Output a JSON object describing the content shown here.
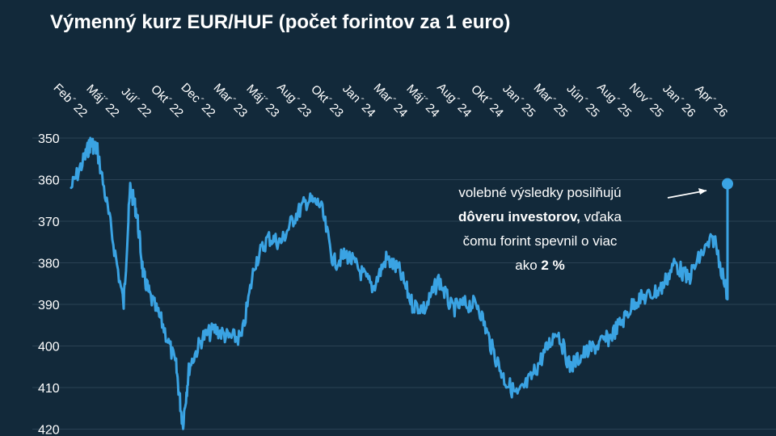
{
  "chart_data": {
    "type": "line",
    "title": "Výmenný kurz EUR/HUF (počet forintov za 1 euro)",
    "xlabel": "",
    "ylabel": "",
    "y_inverted": true,
    "ylim": [
      350,
      420
    ],
    "y_ticks": [
      "350",
      "360",
      "370",
      "380",
      "390",
      "400",
      "410",
      "420"
    ],
    "x_ticks": [
      "Feb´ 22",
      "Máj´ 22",
      "Júl´ 22",
      "Okt´ 22",
      "Dec´ 22",
      "Mar´ 23",
      "Máj´ 23",
      "Aug´ 23",
      "Okt´ 23",
      "Jan´ 24",
      "Mar´ 24",
      "Máj´ 24",
      "Aug´ 24",
      "Okt´ 24",
      "Jan´ 25",
      "Mar´ 25",
      "Jún´ 25",
      "Aug´ 25",
      "Nov´ 25",
      "Jan´ 26",
      "Apr´ 26"
    ],
    "grid": true,
    "line_color": "#3aa3e3",
    "series": [
      {
        "x": [
          "2022-02",
          "2022-03",
          "2022-03",
          "2022-04",
          "2022-05",
          "2022-06",
          "2022-06",
          "2022-07",
          "2022-07",
          "2022-08",
          "2022-09",
          "2022-10",
          "2022-10",
          "2022-11",
          "2022-12",
          "2023-01",
          "2023-02",
          "2023-03",
          "2023-04",
          "2023-05",
          "2023-06",
          "2023-07",
          "2023-08",
          "2023-09",
          "2023-10",
          "2023-11",
          "2023-12",
          "2024-01",
          "2024-02",
          "2024-03",
          "2024-04",
          "2024-05",
          "2024-06",
          "2024-07",
          "2024-08",
          "2024-09",
          "2024-10",
          "2024-11",
          "2024-12",
          "2025-01",
          "2025-02",
          "2025-03",
          "2025-04",
          "2025-05",
          "2025-06",
          "2025-07",
          "2025-08",
          "2025-09",
          "2025-10",
          "2025-11",
          "2025-12",
          "2026-01",
          "2026-02",
          "2026-03",
          "2026-04",
          "2026-04"
        ],
        "values": [
          362,
          355,
          351,
          353,
          371,
          390,
          362,
          368,
          383,
          388,
          395,
          405,
          419,
          405,
          398,
          396,
          398,
          398,
          380,
          374,
          375,
          369,
          365,
          366,
          380,
          378,
          382,
          386,
          379,
          382,
          390,
          391,
          384,
          391,
          390,
          390,
          400,
          408,
          412,
          408,
          402,
          396,
          405,
          402,
          400,
          398,
          394,
          389,
          388,
          386,
          380,
          384,
          378,
          374,
          388,
          361
        ],
        "end_marker": true
      }
    ],
    "annotation": {
      "line1": "volebné výsledky posilňujú",
      "line2_bold": "dôveru investorov,",
      "line2_rest": " vďaka",
      "line3": "čomu forint spevnil o viac",
      "line4_pre": "ako ",
      "line4_bold": "2 %"
    }
  }
}
